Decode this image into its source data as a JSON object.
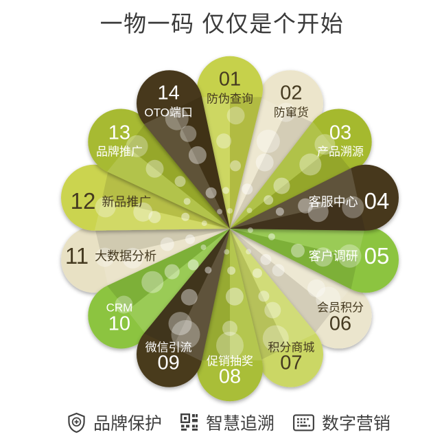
{
  "title": "一物一码 仅仅是个开始",
  "flower": {
    "items": [
      {
        "num": "01",
        "label": "防伪查询",
        "petal_color": "#c6d14b",
        "text_color": "#453a20",
        "layout": "stack-num-top"
      },
      {
        "num": "02",
        "label": "防窜货",
        "petal_color": "#ece5cb",
        "text_color": "#453a20",
        "layout": "stack-num-top"
      },
      {
        "num": "03",
        "label": "产品溯源",
        "petal_color": "#a5b92e",
        "text_color": "#ffffff",
        "layout": "stack-num-top"
      },
      {
        "num": "04",
        "label": "客服中心",
        "petal_color": "#47391e",
        "text_color": "#ffffff",
        "layout": "row-label-first"
      },
      {
        "num": "05",
        "label": "客户调研",
        "petal_color": "#8cc43f",
        "text_color": "#ffffff",
        "layout": "row-label-first"
      },
      {
        "num": "06",
        "label": "会员积分",
        "petal_color": "#ebe5cd",
        "text_color": "#453a20",
        "layout": "stack-label-top"
      },
      {
        "num": "07",
        "label": "积分商城",
        "petal_color": "#cbd765",
        "text_color": "#453a20",
        "layout": "stack-label-top"
      },
      {
        "num": "08",
        "label": "促销抽奖",
        "petal_color": "#a9be37",
        "text_color": "#ffffff",
        "layout": "stack-label-top"
      },
      {
        "num": "09",
        "label": "微信引流",
        "petal_color": "#483a1e",
        "text_color": "#ffffff",
        "layout": "stack-label-top"
      },
      {
        "num": "10",
        "label": "CRM",
        "petal_color": "#8cc43f",
        "text_color": "#ffffff",
        "layout": "stack-label-top"
      },
      {
        "num": "11",
        "label": "大数据分析",
        "petal_color": "#e8e1c4",
        "text_color": "#453a20",
        "layout": "row-num-first"
      },
      {
        "num": "12",
        "label": "新品推广",
        "petal_color": "#cbd450",
        "text_color": "#453a20",
        "layout": "row-num-first"
      },
      {
        "num": "13",
        "label": "品牌推广",
        "petal_color": "#a7ba32",
        "text_color": "#ffffff",
        "layout": "stack-num-top"
      },
      {
        "num": "14",
        "label": "OTO端口",
        "petal_color": "#47391c",
        "text_color": "#ffffff",
        "layout": "stack-num-top"
      }
    ]
  },
  "legend": [
    {
      "icon": "shield-plus-icon",
      "label": "品牌保护"
    },
    {
      "icon": "qr-code-icon",
      "label": "智慧追溯"
    },
    {
      "icon": "keypad-icon",
      "label": "数字营销"
    }
  ],
  "colors": {
    "title_text": "#3b3b3b",
    "legend_text": "#3f3f3f",
    "dark_petal_text": "#453a20",
    "light_petal_text": "#ffffff"
  }
}
